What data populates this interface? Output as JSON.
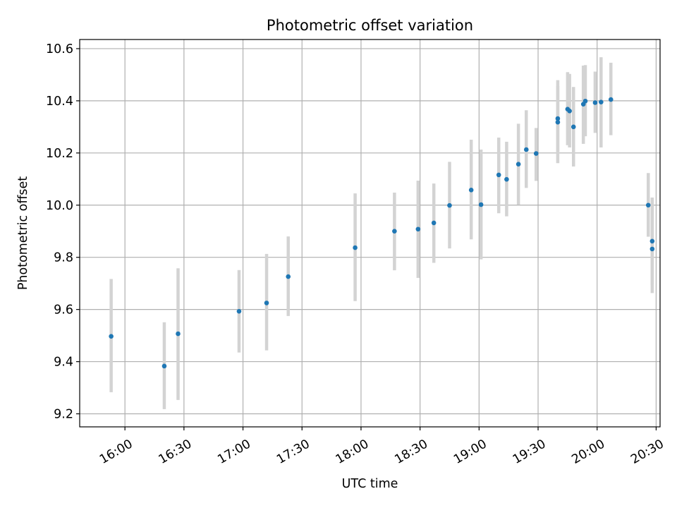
{
  "chart_data": {
    "type": "scatter",
    "title": "Photometric offset variation",
    "xlabel": "UTC time",
    "ylabel": "Photometric offset",
    "x_axis_type": "time",
    "xlim": [
      "15:37",
      "20:32"
    ],
    "ylim": [
      9.15,
      10.635
    ],
    "xticks": [
      "16:00",
      "16:30",
      "17:00",
      "17:30",
      "18:00",
      "18:30",
      "19:00",
      "19:30",
      "20:00",
      "20:30"
    ],
    "yticks": [
      9.2,
      9.4,
      9.6,
      9.8,
      10.0,
      10.2,
      10.4,
      10.6
    ],
    "ytick_labels": [
      "9.2",
      "9.4",
      "9.6",
      "9.8",
      "10.0",
      "10.2",
      "10.4",
      "10.6"
    ],
    "grid": true,
    "point_color": "#1f77b4",
    "errorbar_color": "#d3d3d3",
    "points": [
      {
        "x": "15:53",
        "y": 9.497,
        "ylow": 9.283,
        "yhigh": 9.717
      },
      {
        "x": "16:20",
        "y": 9.383,
        "ylow": 9.218,
        "yhigh": 9.551
      },
      {
        "x": "16:27",
        "y": 9.507,
        "ylow": 9.253,
        "yhigh": 9.758
      },
      {
        "x": "16:58",
        "y": 9.593,
        "ylow": 9.435,
        "yhigh": 9.751
      },
      {
        "x": "17:12",
        "y": 9.625,
        "ylow": 9.443,
        "yhigh": 9.813
      },
      {
        "x": "17:23",
        "y": 9.726,
        "ylow": 9.575,
        "yhigh": 9.88
      },
      {
        "x": "17:57",
        "y": 9.837,
        "ylow": 9.632,
        "yhigh": 10.045
      },
      {
        "x": "18:17",
        "y": 9.9,
        "ylow": 9.75,
        "yhigh": 10.048
      },
      {
        "x": "18:29",
        "y": 9.908,
        "ylow": 9.721,
        "yhigh": 10.094
      },
      {
        "x": "18:37",
        "y": 9.932,
        "ylow": 9.779,
        "yhigh": 10.083
      },
      {
        "x": "18:45",
        "y": 9.999,
        "ylow": 9.834,
        "yhigh": 10.166
      },
      {
        "x": "18:56",
        "y": 10.058,
        "ylow": 9.869,
        "yhigh": 10.251
      },
      {
        "x": "19:01",
        "y": 10.002,
        "ylow": 9.792,
        "yhigh": 10.213
      },
      {
        "x": "19:10",
        "y": 10.116,
        "ylow": 9.969,
        "yhigh": 10.259
      },
      {
        "x": "19:14",
        "y": 10.099,
        "ylow": 9.957,
        "yhigh": 10.243
      },
      {
        "x": "19:20",
        "y": 10.157,
        "ylow": 10.002,
        "yhigh": 10.312
      },
      {
        "x": "19:24",
        "y": 10.213,
        "ylow": 10.066,
        "yhigh": 10.364
      },
      {
        "x": "19:29",
        "y": 10.198,
        "ylow": 10.093,
        "yhigh": 10.296
      },
      {
        "x": "19:40",
        "y": 10.332,
        "ylow": 10.197,
        "yhigh": 10.456
      },
      {
        "x": "19:40",
        "y": 10.318,
        "ylow": 10.161,
        "yhigh": 10.479
      },
      {
        "x": "19:45",
        "y": 10.368,
        "ylow": 10.23,
        "yhigh": 10.51
      },
      {
        "x": "19:46",
        "y": 10.361,
        "ylow": 10.221,
        "yhigh": 10.503
      },
      {
        "x": "19:48",
        "y": 10.3,
        "ylow": 10.148,
        "yhigh": 10.453
      },
      {
        "x": "19:53",
        "y": 10.387,
        "ylow": 10.235,
        "yhigh": 10.535
      },
      {
        "x": "19:54",
        "y": 10.399,
        "ylow": 10.264,
        "yhigh": 10.537
      },
      {
        "x": "19:59",
        "y": 10.393,
        "ylow": 10.277,
        "yhigh": 10.512
      },
      {
        "x": "20:02",
        "y": 10.395,
        "ylow": 10.221,
        "yhigh": 10.567
      },
      {
        "x": "20:07",
        "y": 10.405,
        "ylow": 10.268,
        "yhigh": 10.546
      },
      {
        "x": "20:26",
        "y": 10.0,
        "ylow": 9.879,
        "yhigh": 10.123
      },
      {
        "x": "20:28",
        "y": 9.862,
        "ylow": 9.695,
        "yhigh": 10.029
      },
      {
        "x": "20:28",
        "y": 9.832,
        "ylow": 9.663,
        "yhigh": 10.003
      }
    ]
  }
}
